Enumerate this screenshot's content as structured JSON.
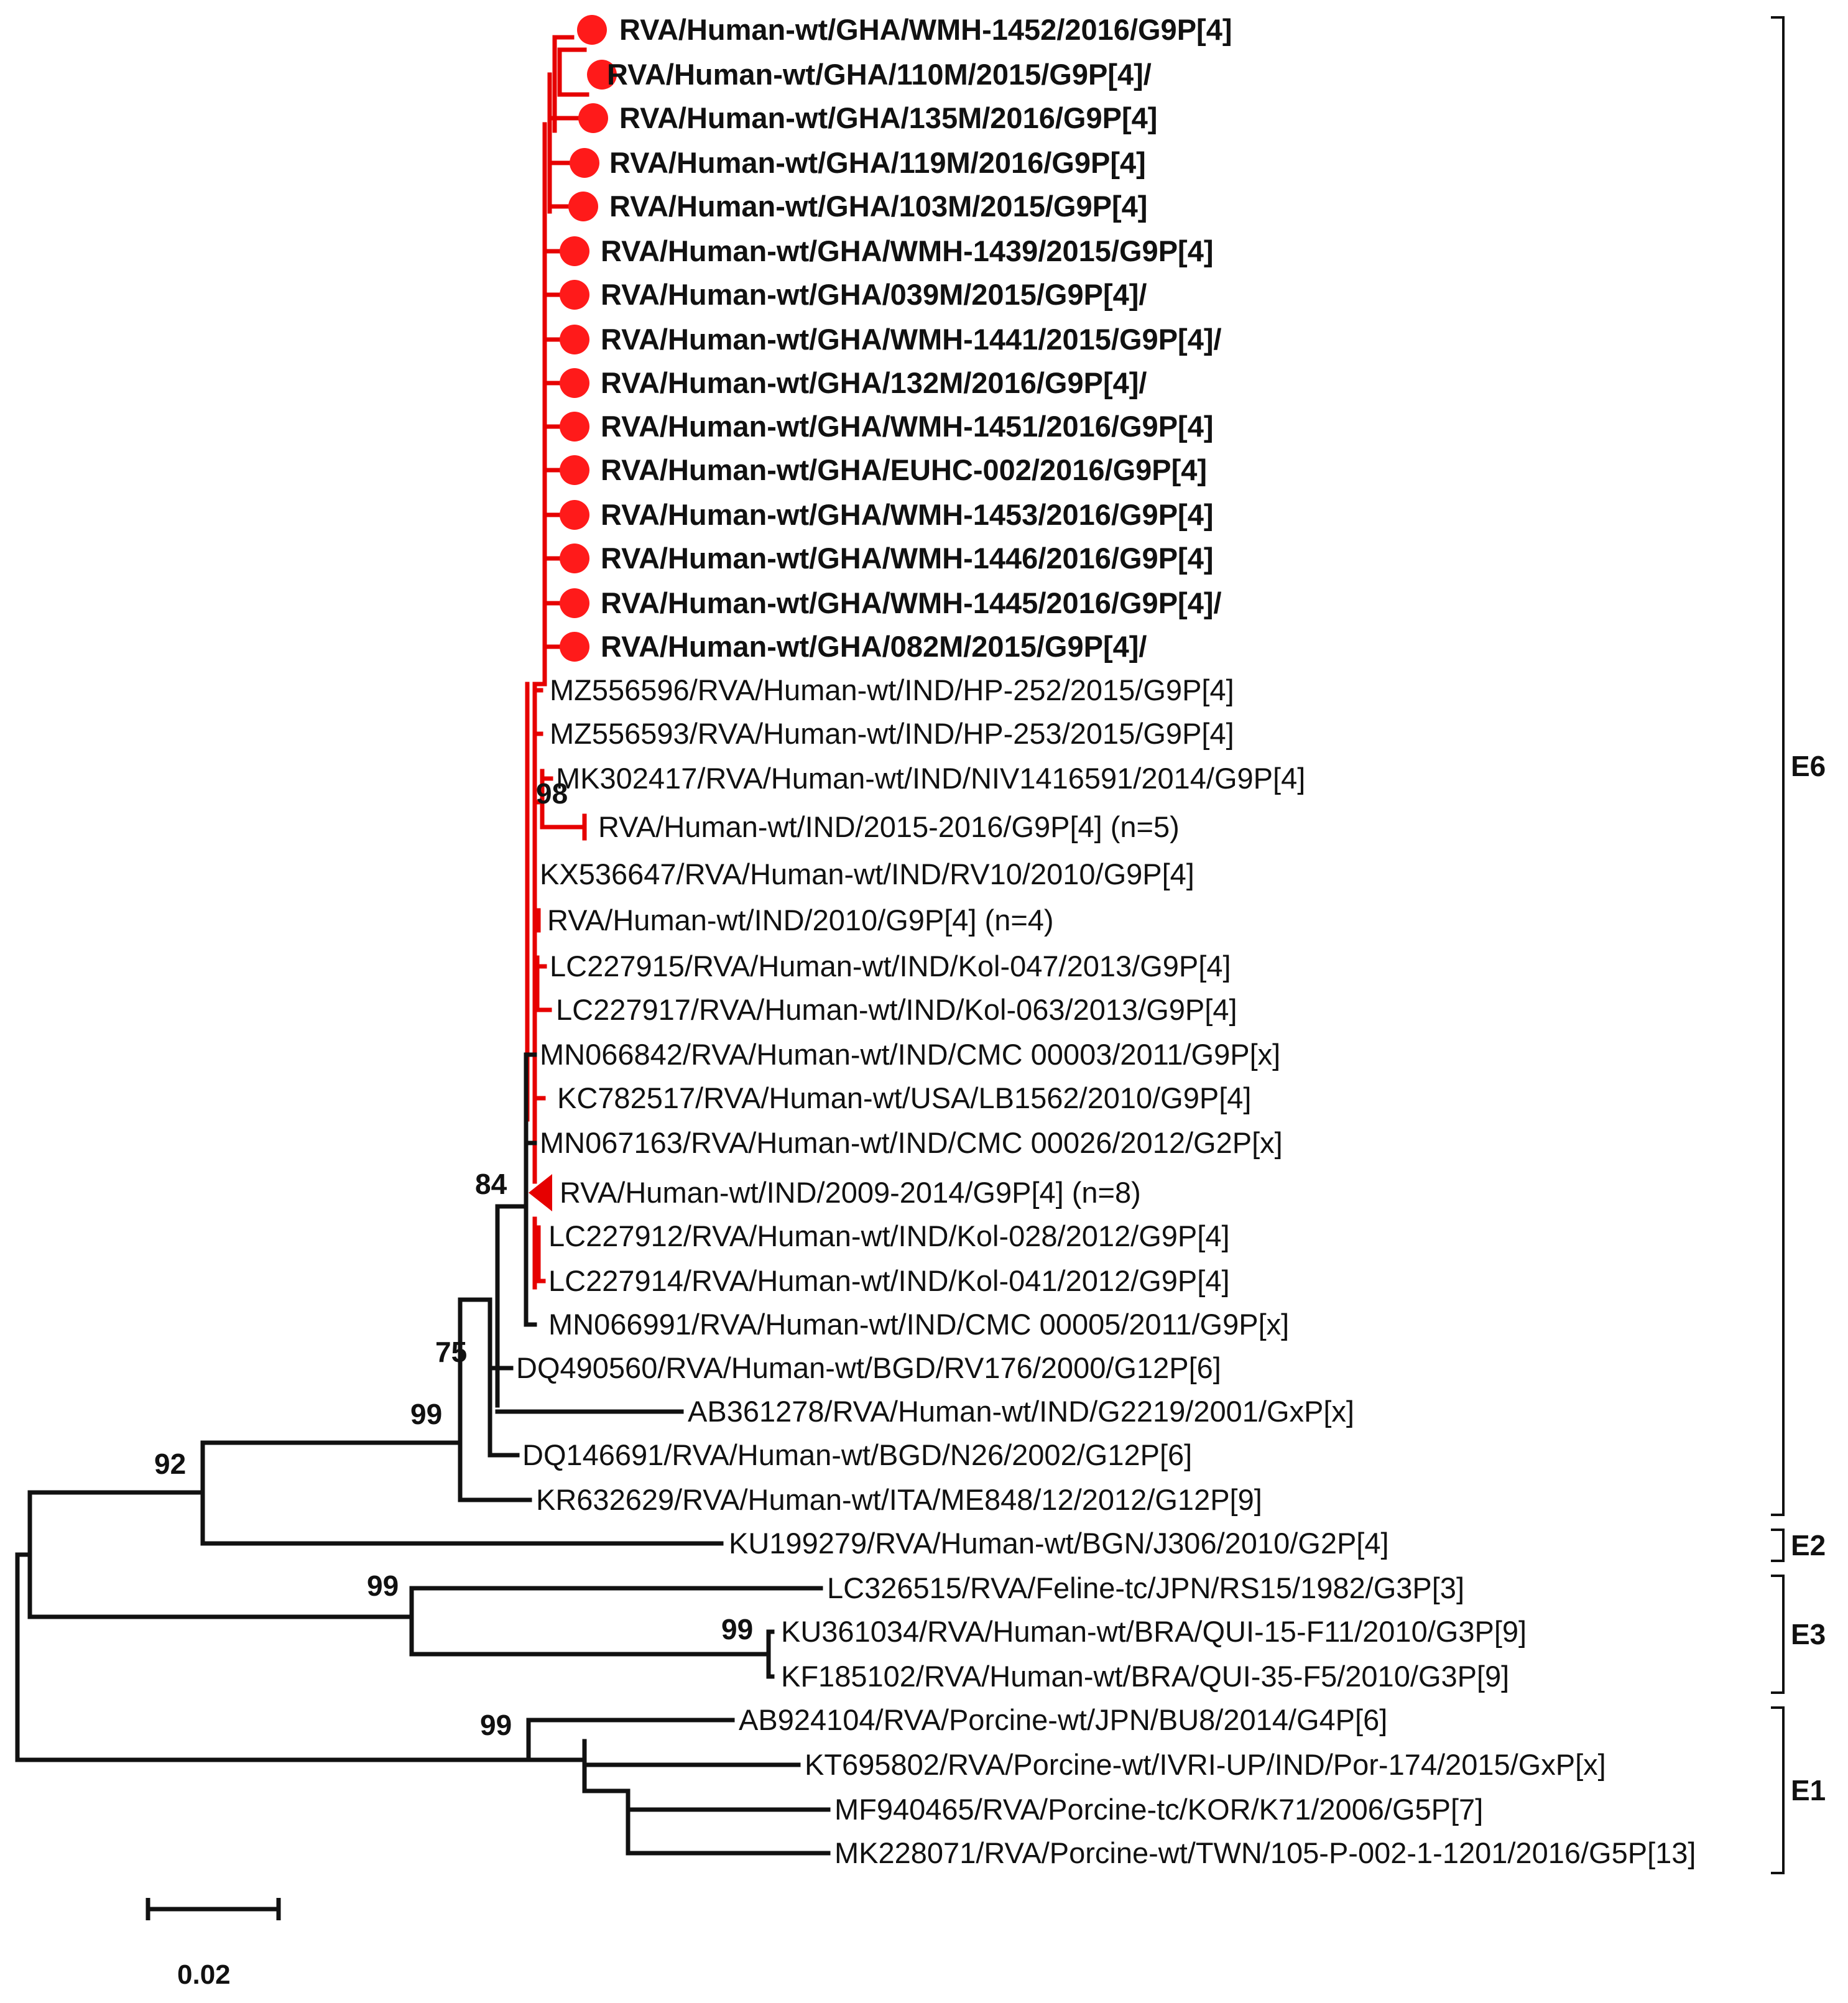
{
  "figure": {
    "type": "phylogenetic-tree",
    "colors": {
      "highlight": "#e60000",
      "default": "#111111",
      "marker": "#ff1a1a"
    },
    "scale_bar": {
      "label": "0.02"
    }
  },
  "leaves": [
    {
      "label": "RVA/Human-wt/GHA/WMH-1452/2016/G9P[4]",
      "study": true
    },
    {
      "label": "RVA/Human-wt/GHA/110M/2015/G9P[4]/",
      "study": true
    },
    {
      "label": "RVA/Human-wt/GHA/135M/2016/G9P[4]",
      "study": true
    },
    {
      "label": "RVA/Human-wt/GHA/119M/2016/G9P[4]",
      "study": true
    },
    {
      "label": "RVA/Human-wt/GHA/103M/2015/G9P[4]",
      "study": true
    },
    {
      "label": "RVA/Human-wt/GHA/WMH-1439/2015/G9P[4]",
      "study": true
    },
    {
      "label": "RVA/Human-wt/GHA/039M/2015/G9P[4]/",
      "study": true
    },
    {
      "label": "RVA/Human-wt/GHA/WMH-1441/2015/G9P[4]/",
      "study": true
    },
    {
      "label": "RVA/Human-wt/GHA/132M/2016/G9P[4]/",
      "study": true
    },
    {
      "label": "RVA/Human-wt/GHA/WMH-1451/2016/G9P[4]",
      "study": true
    },
    {
      "label": "RVA/Human-wt/GHA/EUHC-002/2016/G9P[4]",
      "study": true
    },
    {
      "label": "RVA/Human-wt/GHA/WMH-1453/2016/G9P[4]",
      "study": true
    },
    {
      "label": "RVA/Human-wt/GHA/WMH-1446/2016/G9P[4]",
      "study": true
    },
    {
      "label": "RVA/Human-wt/GHA/WMH-1445/2016/G9P[4]/",
      "study": true
    },
    {
      "label": "RVA/Human-wt/GHA/082M/2015/G9P[4]/",
      "study": true
    },
    {
      "label": "MZ556596/RVA/Human-wt/IND/HP-252/2015/G9P[4]",
      "study": false
    },
    {
      "label": "MZ556593/RVA/Human-wt/IND/HP-253/2015/G9P[4]",
      "study": false
    },
    {
      "label": "MK302417/RVA/Human-wt/IND/NIV1416591/2014/G9P[4]",
      "study": false
    },
    {
      "label": "RVA/Human-wt/IND/2015-2016/G9P[4] (n=5)",
      "study": false
    },
    {
      "label": "KX536647/RVA/Human-wt/IND/RV10/2010/G9P[4]",
      "study": false
    },
    {
      "label": "RVA/Human-wt/IND/2010/G9P[4] (n=4)",
      "study": false
    },
    {
      "label": "LC227915/RVA/Human-wt/IND/Kol-047/2013/G9P[4]",
      "study": false
    },
    {
      "label": "LC227917/RVA/Human-wt/IND/Kol-063/2013/G9P[4]",
      "study": false
    },
    {
      "label": "MN066842/RVA/Human-wt/IND/CMC 00003/2011/G9P[x]",
      "study": false
    },
    {
      "label": "KC782517/RVA/Human-wt/USA/LB1562/2010/G9P[4]",
      "study": false
    },
    {
      "label": "MN067163/RVA/Human-wt/IND/CMC 00026/2012/G2P[x]",
      "study": false
    },
    {
      "label": "RVA/Human-wt/IND/2009-2014/G9P[4] (n=8)",
      "study": false
    },
    {
      "label": "LC227912/RVA/Human-wt/IND/Kol-028/2012/G9P[4]",
      "study": false
    },
    {
      "label": "LC227914/RVA/Human-wt/IND/Kol-041/2012/G9P[4]",
      "study": false
    },
    {
      "label": "MN066991/RVA/Human-wt/IND/CMC 00005/2011/G9P[x]",
      "study": false
    },
    {
      "label": "DQ490560/RVA/Human-wt/BGD/RV176/2000/G12P[6]",
      "study": false
    },
    {
      "label": "AB361278/RVA/Human-wt/IND/G2219/2001/GxP[x]",
      "study": false
    },
    {
      "label": "DQ146691/RVA/Human-wt/BGD/N26/2002/G12P[6]",
      "study": false
    },
    {
      "label": "KR632629/RVA/Human-wt/ITA/ME848/12/2012/G12P[9]",
      "study": false
    },
    {
      "label": "KU199279/RVA/Human-wt/BGN/J306/2010/G2P[4]",
      "study": false
    },
    {
      "label": "LC326515/RVA/Feline-tc/JPN/RS15/1982/G3P[3]",
      "study": false
    },
    {
      "label": "KU361034/RVA/Human-wt/BRA/QUI-15-F11/2010/G3P[9]",
      "study": false
    },
    {
      "label": "KF185102/RVA/Human-wt/BRA/QUI-35-F5/2010/G3P[9]",
      "study": false
    },
    {
      "label": "AB924104/RVA/Porcine-wt/JPN/BU8/2014/G4P[6]",
      "study": false
    },
    {
      "label": "KT695802/RVA/Porcine-wt/IVRI-UP/IND/Por-174/2015/GxP[x]",
      "study": false
    },
    {
      "label": "MF940465/RVA/Porcine-tc/KOR/K71/2006/G5P[7]",
      "study": false
    },
    {
      "label": "MK228071/RVA/Porcine-wt/TWN/105-P-002-1-1201/2016/G5P[13]",
      "study": false
    }
  ],
  "bootstrap_values": [
    "98",
    "84",
    "75",
    "99",
    "92",
    "99",
    "99",
    "99"
  ],
  "clades": [
    {
      "label": "E6"
    },
    {
      "label": "E2"
    },
    {
      "label": "E3"
    },
    {
      "label": "E1"
    }
  ]
}
